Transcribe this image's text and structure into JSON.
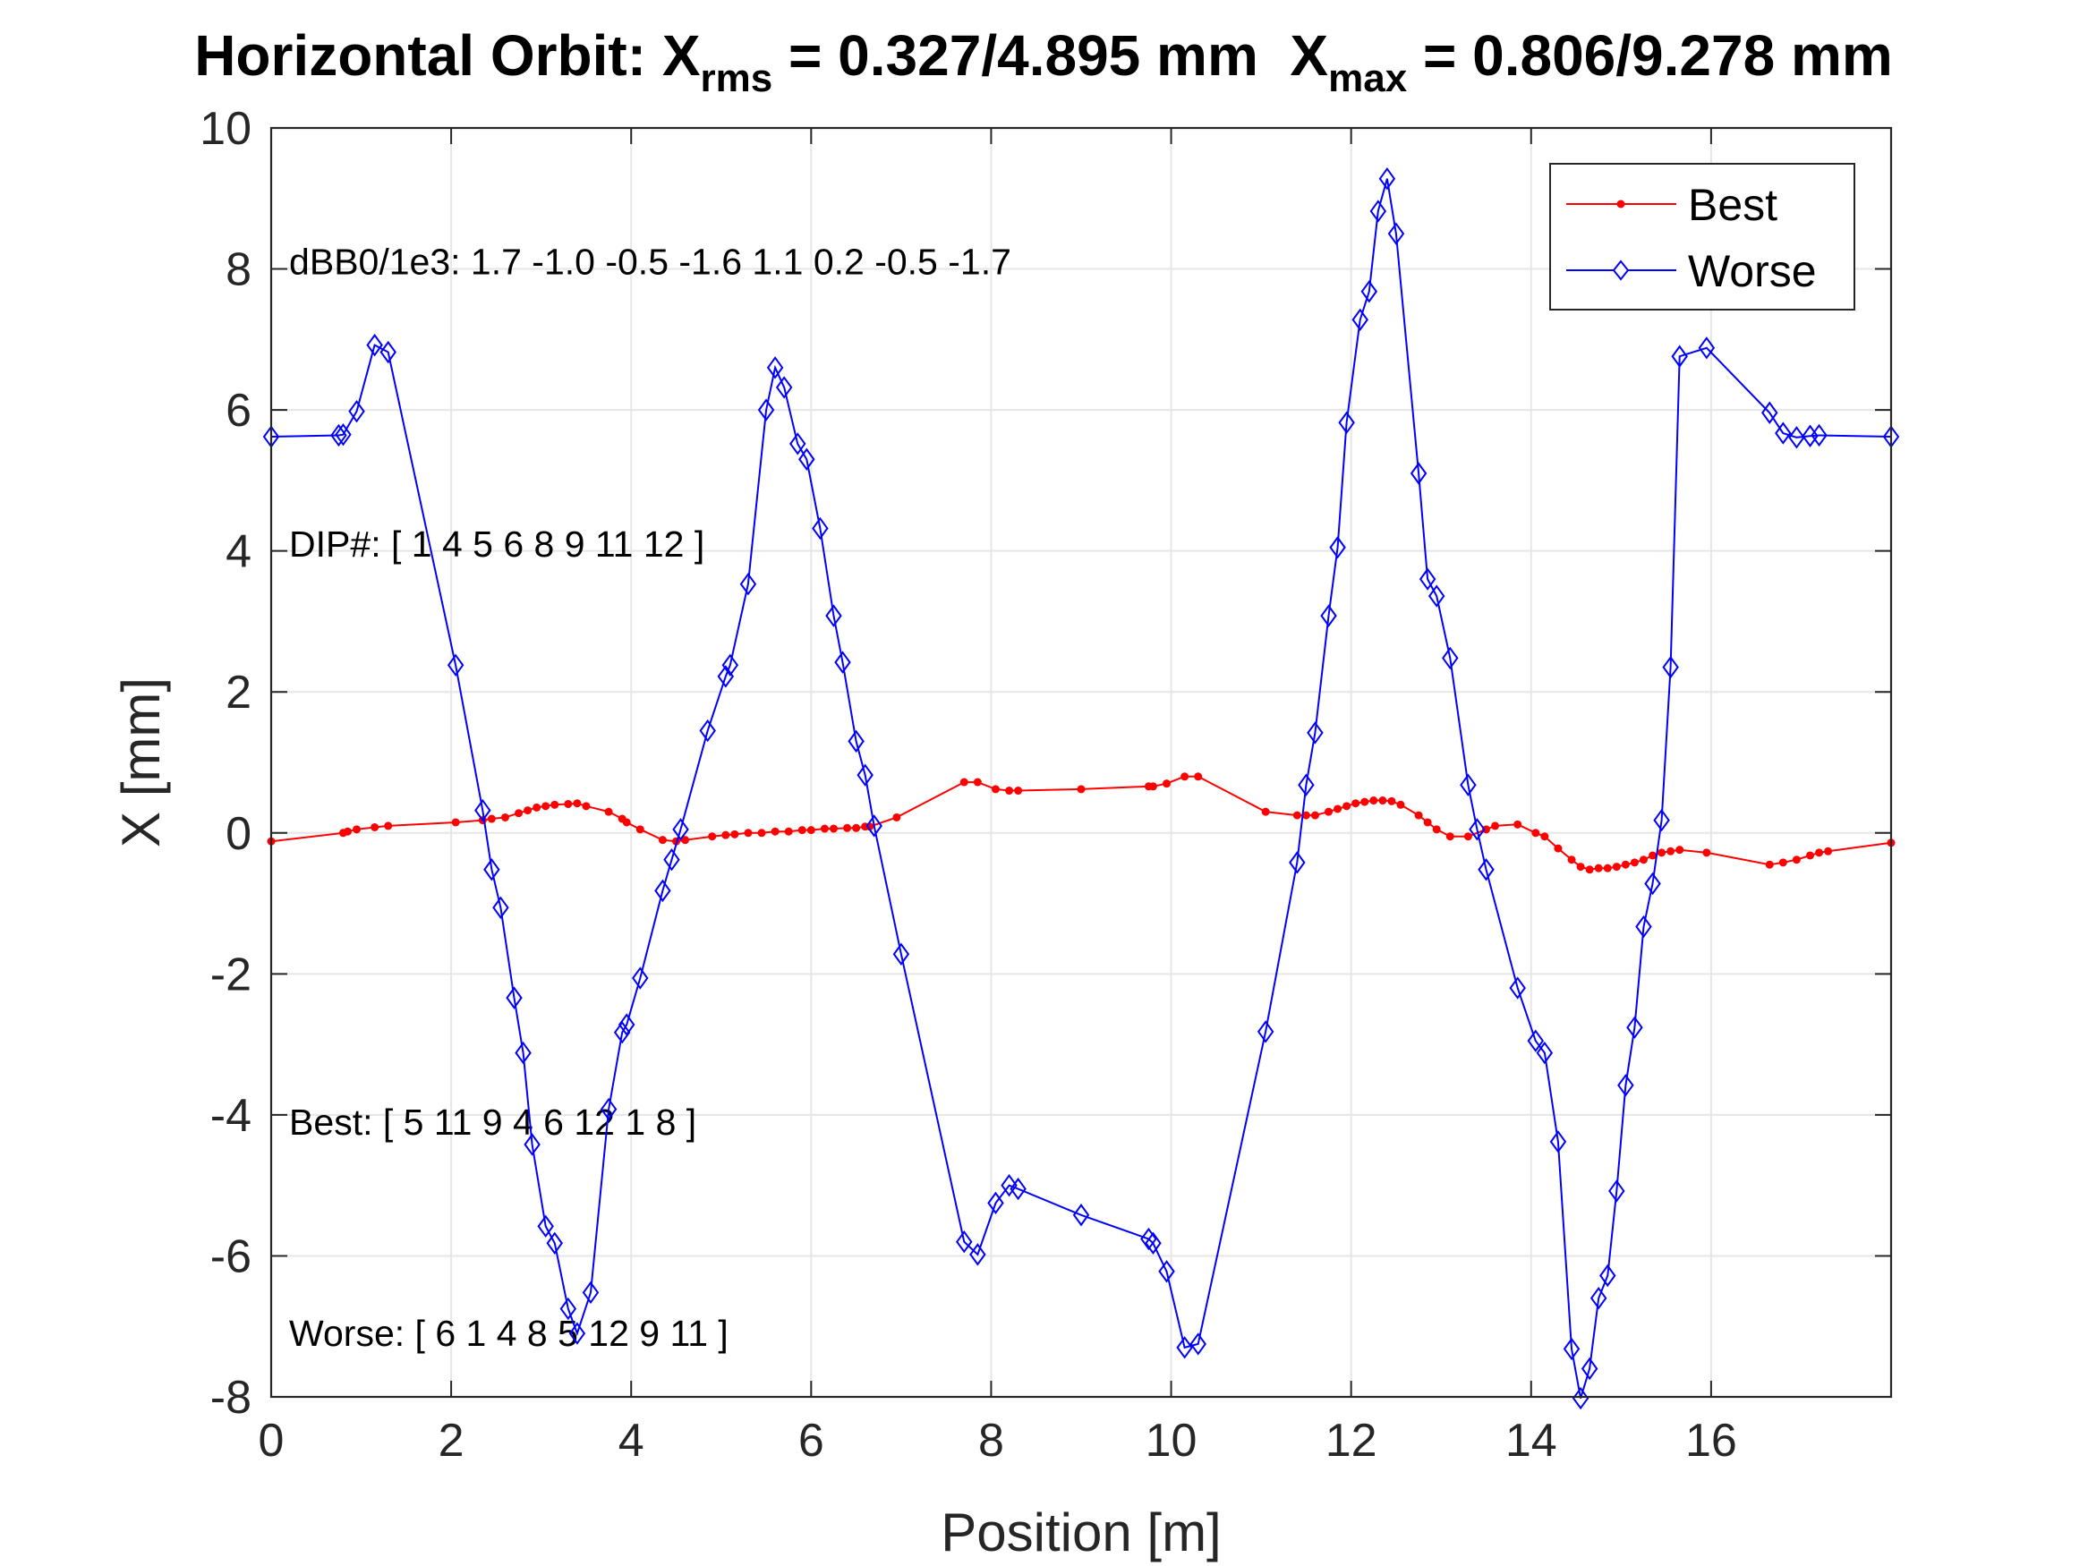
{
  "chart_data": {
    "type": "line",
    "title": {
      "prefix": "Horizontal Orbit: X",
      "sub1": "rms",
      "middle": " = 0.327/4.895 mm  X",
      "sub2": "max",
      "suffix": " = 0.806/9.278 mm"
    },
    "xlabel": "Position [m]",
    "ylabel": "X [mm]",
    "xlim": [
      0,
      18
    ],
    "ylim": [
      -8,
      10
    ],
    "xticks": [
      0,
      2,
      4,
      6,
      8,
      10,
      12,
      14,
      16
    ],
    "xtick_labels": [
      "0",
      "2",
      "4",
      "6",
      "8",
      "10",
      "12",
      "14",
      "16"
    ],
    "yticks": [
      -8,
      -6,
      -4,
      -2,
      0,
      2,
      4,
      6,
      8,
      10
    ],
    "ytick_labels": [
      "-8",
      "-6",
      "-4",
      "-2",
      "0",
      "2",
      "4",
      "6",
      "8",
      "10"
    ],
    "grid": true,
    "legend_position": "top-right",
    "annotations": [
      {
        "text": "dBB0/1e3: 1.7 -1.0 -0.5 -1.6  1.1  0.2 -0.5 -1.7",
        "x": 0.1,
        "y": 8.1
      },
      {
        "text": "DIP#: [ 1   4   5   6   8   9  11  12 ]",
        "x": 0.1,
        "y": 4.1
      },
      {
        "text": "Best: [ 5  11   9   4   6  12   1   8 ]",
        "x": 0.1,
        "y": -4.1
      },
      {
        "text": "Worse: [ 6   1   4   8   5  12   9  11 ]",
        "x": 0.1,
        "y": -7.1
      }
    ],
    "series": [
      {
        "name": "Best",
        "color": "#ff0000",
        "marker": "dot",
        "x": [
          0.0,
          0.8,
          0.85,
          0.95,
          1.15,
          1.3,
          2.05,
          2.35,
          2.45,
          2.6,
          2.75,
          2.85,
          2.95,
          3.05,
          3.15,
          3.3,
          3.4,
          3.5,
          3.75,
          3.9,
          3.95,
          4.1,
          4.35,
          4.5,
          4.6,
          4.9,
          5.05,
          5.15,
          5.3,
          5.45,
          5.6,
          5.75,
          5.9,
          6.0,
          6.15,
          6.25,
          6.4,
          6.5,
          6.6,
          6.65,
          6.95,
          7.7,
          7.85,
          8.05,
          8.2,
          8.3,
          9.0,
          9.75,
          9.8,
          9.95,
          10.15,
          10.3,
          11.05,
          11.4,
          11.5,
          11.6,
          11.75,
          11.85,
          11.95,
          12.05,
          12.15,
          12.25,
          12.35,
          12.45,
          12.55,
          12.75,
          12.85,
          12.95,
          13.1,
          13.3,
          13.5,
          13.6,
          13.85,
          14.05,
          14.15,
          14.3,
          14.45,
          14.55,
          14.65,
          14.75,
          14.85,
          14.95,
          15.05,
          15.15,
          15.25,
          15.35,
          15.45,
          15.55,
          15.65,
          15.95,
          16.65,
          16.8,
          16.95,
          17.1,
          17.2,
          17.3,
          18.0
        ],
        "y": [
          -0.12,
          0.0,
          0.02,
          0.05,
          0.08,
          0.1,
          0.15,
          0.18,
          0.2,
          0.22,
          0.28,
          0.32,
          0.36,
          0.38,
          0.4,
          0.41,
          0.42,
          0.38,
          0.3,
          0.2,
          0.15,
          0.05,
          -0.1,
          -0.12,
          -0.1,
          -0.05,
          -0.03,
          -0.02,
          0.0,
          0.0,
          0.02,
          0.02,
          0.04,
          0.04,
          0.06,
          0.06,
          0.07,
          0.07,
          0.09,
          0.09,
          0.22,
          0.72,
          0.72,
          0.62,
          0.6,
          0.6,
          0.62,
          0.66,
          0.66,
          0.7,
          0.8,
          0.8,
          0.3,
          0.25,
          0.25,
          0.25,
          0.3,
          0.34,
          0.38,
          0.42,
          0.44,
          0.46,
          0.46,
          0.45,
          0.4,
          0.25,
          0.15,
          0.05,
          -0.05,
          -0.05,
          0.05,
          0.1,
          0.12,
          0.0,
          -0.05,
          -0.22,
          -0.38,
          -0.48,
          -0.52,
          -0.5,
          -0.5,
          -0.48,
          -0.45,
          -0.42,
          -0.38,
          -0.32,
          -0.28,
          -0.26,
          -0.24,
          -0.28,
          -0.45,
          -0.42,
          -0.38,
          -0.32,
          -0.28,
          -0.26,
          -0.14
        ]
      },
      {
        "name": "Worse",
        "color": "#0000ff",
        "marker": "diamond",
        "x": [
          0.0,
          0.75,
          0.8,
          0.95,
          1.15,
          1.3,
          2.05,
          2.35,
          2.45,
          2.55,
          2.7,
          2.8,
          2.9,
          3.05,
          3.15,
          3.3,
          3.4,
          3.55,
          3.75,
          3.9,
          3.95,
          4.1,
          4.35,
          4.45,
          4.55,
          4.85,
          5.05,
          5.1,
          5.3,
          5.5,
          5.6,
          5.7,
          5.85,
          5.95,
          6.1,
          6.25,
          6.35,
          6.5,
          6.6,
          6.7,
          7.0,
          7.7,
          7.85,
          8.05,
          8.2,
          8.3,
          9.0,
          9.75,
          9.8,
          9.95,
          10.15,
          10.3,
          11.05,
          11.4,
          11.5,
          11.6,
          11.75,
          11.85,
          11.95,
          12.1,
          12.2,
          12.3,
          12.4,
          12.5,
          12.75,
          12.85,
          12.95,
          13.1,
          13.3,
          13.4,
          13.5,
          13.85,
          14.05,
          14.15,
          14.3,
          14.45,
          14.55,
          14.65,
          14.75,
          14.85,
          14.95,
          15.05,
          15.15,
          15.25,
          15.35,
          15.45,
          15.55,
          15.65,
          15.95,
          16.65,
          16.8,
          16.95,
          17.1,
          17.2,
          18.0
        ],
        "y": [
          5.62,
          5.64,
          5.65,
          5.98,
          6.92,
          6.82,
          2.38,
          0.32,
          -0.52,
          -1.06,
          -2.34,
          -3.12,
          -4.42,
          -5.58,
          -5.82,
          -6.75,
          -7.1,
          -6.52,
          -3.92,
          -2.83,
          -2.72,
          -2.06,
          -0.82,
          -0.38,
          0.05,
          1.45,
          2.22,
          2.38,
          3.53,
          6.0,
          6.6,
          6.32,
          5.52,
          5.3,
          4.32,
          3.08,
          2.42,
          1.3,
          0.82,
          0.1,
          -1.72,
          -5.8,
          -5.98,
          -5.25,
          -5.0,
          -5.05,
          -5.42,
          -5.76,
          -5.82,
          -6.22,
          -7.3,
          -7.25,
          -2.82,
          -0.42,
          0.68,
          1.42,
          3.08,
          4.05,
          5.82,
          7.28,
          7.68,
          8.82,
          9.28,
          8.5,
          5.1,
          3.6,
          3.36,
          2.48,
          0.68,
          0.05,
          -0.52,
          -2.2,
          -2.95,
          -3.12,
          -4.38,
          -7.32,
          -8.02,
          -7.6,
          -6.6,
          -6.28,
          -5.08,
          -3.58,
          -2.76,
          -1.33,
          -0.72,
          0.18,
          2.35,
          6.76,
          6.88,
          5.96,
          5.67,
          5.61,
          5.63,
          5.64,
          5.62
        ]
      }
    ]
  }
}
